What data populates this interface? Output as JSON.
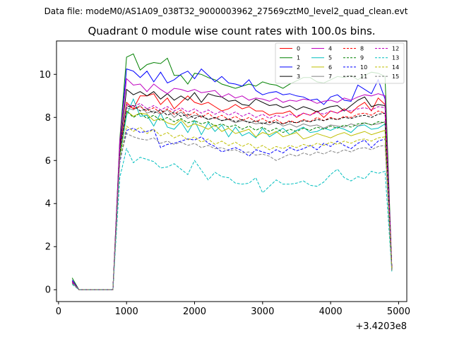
{
  "suptitle": "Data file: modeM0/AS1A09_038T32_9000003962_27569cztM0_level2_quad_clean.evt",
  "chart_data": {
    "type": "line",
    "title": "Quadrant 0 module wise count rates with 100.0s bins.",
    "xlabel": "",
    "ylabel": "",
    "x_offset_label": "+3.4203e8",
    "xlim": [
      -30,
      5120
    ],
    "ylim": [
      -0.55,
      11.55
    ],
    "xticks": [
      0,
      1000,
      2000,
      3000,
      4000,
      5000
    ],
    "yticks": [
      0,
      2,
      4,
      6,
      8,
      10
    ],
    "grid": false,
    "legend": {
      "placement": "top-right",
      "columns": 4
    },
    "x": [
      200,
      300,
      400,
      500,
      600,
      700,
      800,
      900,
      1000,
      1100,
      1200,
      1300,
      1400,
      1500,
      1600,
      1700,
      1800,
      1900,
      2000,
      2100,
      2200,
      2300,
      2400,
      2500,
      2600,
      2700,
      2800,
      2900,
      3000,
      3100,
      3200,
      3300,
      3400,
      3500,
      3600,
      3700,
      3800,
      3900,
      4000,
      4100,
      4200,
      4300,
      4400,
      4500,
      4600,
      4700,
      4800,
      4900
    ],
    "series": [
      {
        "name": "0",
        "color": "#ff0000",
        "dash": "solid",
        "values": [
          0.35,
          0,
          0,
          0,
          0,
          0,
          0,
          6.4,
          8.7,
          8.4,
          9.0,
          9.0,
          9.1,
          8.6,
          8.9,
          8.4,
          8.7,
          9.0,
          8.7,
          8.6,
          8.7,
          8.5,
          8.3,
          8.4,
          8.6,
          8.4,
          8.5,
          8.3,
          8.3,
          8.1,
          8.2,
          8.2,
          8.3,
          8.0,
          8.2,
          8.1,
          8.3,
          8.0,
          8.3,
          8.2,
          8.4,
          8.2,
          8.5,
          8.7,
          8.3,
          8.9,
          8.6,
          1.0
        ]
      },
      {
        "name": "1",
        "color": "#008000",
        "dash": "solid",
        "values": [
          0.55,
          0,
          0,
          0,
          0,
          0,
          0,
          7.0,
          10.8,
          10.95,
          10.2,
          10.45,
          10.55,
          10.5,
          10.75,
          9.95,
          9.95,
          9.55,
          10.05,
          10.0,
          9.85,
          9.75,
          9.55,
          9.45,
          9.35,
          9.45,
          9.55,
          9.45,
          9.65,
          9.55,
          9.5,
          9.35,
          9.55,
          9.7,
          9.85,
          9.85,
          9.65,
          9.6,
          9.75,
          9.9,
          9.85,
          9.95,
          9.75,
          9.95,
          10.1,
          10.05,
          9.9,
          1.0
        ]
      },
      {
        "name": "2",
        "color": "#0000ff",
        "dash": "solid",
        "values": [
          0.45,
          0,
          0,
          0,
          0,
          0,
          0,
          6.8,
          10.25,
          10.15,
          9.85,
          10.15,
          9.65,
          10.1,
          9.6,
          9.75,
          10.0,
          10.15,
          9.8,
          10.25,
          9.95,
          9.65,
          9.9,
          9.6,
          9.55,
          9.45,
          9.75,
          9.25,
          9.05,
          9.15,
          9.2,
          9.05,
          9.1,
          9.0,
          8.95,
          8.8,
          8.85,
          8.6,
          8.95,
          9.05,
          8.8,
          8.75,
          9.5,
          9.3,
          9.1,
          9.75,
          8.85,
          1.0
        ]
      },
      {
        "name": "3",
        "color": "#000000",
        "dash": "solid",
        "values": [
          0.4,
          0,
          0,
          0,
          0,
          0,
          0,
          6.6,
          9.3,
          9.05,
          9.2,
          9.0,
          9.2,
          8.85,
          9.1,
          8.8,
          9.0,
          8.8,
          9.15,
          8.7,
          9.1,
          9.0,
          8.95,
          8.75,
          8.8,
          8.6,
          8.55,
          8.85,
          8.7,
          8.55,
          8.6,
          8.45,
          8.55,
          8.35,
          8.5,
          8.4,
          8.25,
          8.4,
          8.5,
          8.55,
          8.3,
          8.55,
          8.8,
          8.95,
          8.5,
          8.6,
          8.55,
          1.0
        ]
      },
      {
        "name": "4",
        "color": "#bf00bf",
        "dash": "solid",
        "values": [
          0.4,
          0,
          0,
          0,
          0,
          0,
          0,
          6.9,
          9.8,
          9.5,
          9.55,
          9.2,
          9.55,
          9.3,
          9.1,
          9.35,
          9.3,
          9.2,
          9.3,
          9.15,
          9.2,
          9.25,
          8.95,
          9.1,
          8.9,
          9.0,
          8.8,
          8.9,
          8.85,
          8.75,
          8.9,
          8.7,
          8.8,
          8.75,
          8.85,
          8.8,
          8.65,
          8.75,
          8.8,
          8.7,
          8.9,
          8.8,
          8.95,
          9.05,
          9.0,
          9.1,
          9.0,
          1.0
        ]
      },
      {
        "name": "5",
        "color": "#00bfbf",
        "dash": "solid",
        "values": [
          0.35,
          0,
          0,
          0,
          0,
          0,
          0,
          6.1,
          8.1,
          8.85,
          8.05,
          8.1,
          7.6,
          8.2,
          7.55,
          7.45,
          7.8,
          7.3,
          7.85,
          7.2,
          7.75,
          7.35,
          7.65,
          7.1,
          7.55,
          7.15,
          7.3,
          7.05,
          7.5,
          7.1,
          7.3,
          7.5,
          7.2,
          7.4,
          7.55,
          7.3,
          7.35,
          7.5,
          7.4,
          7.55,
          7.45,
          7.3,
          7.6,
          7.65,
          7.45,
          7.5,
          7.7,
          0.9
        ]
      },
      {
        "name": "6",
        "color": "#bfbf00",
        "dash": "solid",
        "values": [
          0.35,
          0,
          0,
          0,
          0,
          0,
          0,
          6.2,
          8.3,
          8.05,
          8.2,
          8.15,
          7.85,
          7.95,
          7.75,
          7.65,
          7.9,
          7.55,
          7.7,
          7.6,
          7.45,
          7.65,
          7.35,
          7.5,
          7.25,
          7.35,
          7.45,
          7.1,
          7.3,
          7.2,
          7.35,
          7.1,
          7.2,
          7.3,
          7.0,
          7.1,
          7.25,
          7.15,
          7.05,
          7.2,
          7.3,
          7.15,
          7.25,
          7.35,
          7.2,
          7.3,
          7.4,
          0.95
        ]
      },
      {
        "name": "7",
        "color": "#808080",
        "dash": "solid",
        "values": [
          0.35,
          0,
          0,
          0,
          0,
          0,
          0,
          6.3,
          8.45,
          8.35,
          8.55,
          8.2,
          8.3,
          8.15,
          8.35,
          8.0,
          8.25,
          7.95,
          8.1,
          8.05,
          7.9,
          8.0,
          7.85,
          7.9,
          7.75,
          7.85,
          7.8,
          7.7,
          7.75,
          7.65,
          7.8,
          7.6,
          7.7,
          7.55,
          7.7,
          7.6,
          7.65,
          7.5,
          7.65,
          7.6,
          7.55,
          7.7,
          7.6,
          7.75,
          7.65,
          7.7,
          7.8,
          1.0
        ]
      },
      {
        "name": "8",
        "color": "#ff0000",
        "dash": "dashed",
        "values": [
          0.35,
          0,
          0,
          0,
          0,
          0,
          0,
          6.4,
          8.6,
          8.4,
          8.5,
          8.3,
          8.45,
          8.2,
          8.4,
          8.15,
          8.35,
          8.05,
          8.25,
          8.0,
          8.2,
          7.95,
          8.1,
          7.9,
          8.05,
          7.85,
          8.0,
          7.8,
          7.95,
          7.75,
          7.9,
          7.7,
          7.85,
          7.75,
          7.9,
          7.8,
          8.0,
          7.85,
          8.0,
          7.9,
          8.05,
          8.0,
          8.15,
          8.2,
          8.1,
          8.3,
          8.2,
          1.0
        ]
      },
      {
        "name": "9",
        "color": "#008000",
        "dash": "dashed",
        "values": [
          0.35,
          0,
          0,
          0,
          0,
          0,
          0,
          6.3,
          8.3,
          8.0,
          8.2,
          7.95,
          8.1,
          7.85,
          8.0,
          7.8,
          7.95,
          7.75,
          7.85,
          7.7,
          7.8,
          7.6,
          7.7,
          7.55,
          7.65,
          7.45,
          7.6,
          7.4,
          7.55,
          7.35,
          7.5,
          7.3,
          7.45,
          7.35,
          7.5,
          7.4,
          7.55,
          7.45,
          7.6,
          7.5,
          7.65,
          7.55,
          7.7,
          7.75,
          7.65,
          7.8,
          7.75,
          0.95
        ]
      },
      {
        "name": "10",
        "color": "#0000ff",
        "dash": "dashed",
        "values": [
          0.3,
          0,
          0,
          0,
          0,
          0,
          0,
          5.9,
          7.4,
          7.5,
          7.3,
          7.35,
          7.45,
          6.6,
          6.75,
          6.8,
          6.9,
          7.0,
          6.95,
          7.1,
          6.8,
          6.65,
          6.4,
          6.5,
          6.6,
          6.45,
          6.2,
          6.5,
          6.4,
          6.3,
          6.5,
          6.35,
          6.6,
          6.45,
          6.55,
          6.7,
          6.5,
          6.8,
          6.65,
          6.9,
          6.7,
          6.55,
          6.8,
          6.95,
          6.6,
          6.9,
          7.0,
          0.9
        ]
      },
      {
        "name": "11",
        "color": "#000000",
        "dash": "dashed",
        "values": [
          0.35,
          0,
          0,
          0,
          0,
          0,
          0,
          6.4,
          8.5,
          8.55,
          8.3,
          8.4,
          8.2,
          8.35,
          8.1,
          8.25,
          8.05,
          8.15,
          7.95,
          8.1,
          7.9,
          8.0,
          7.85,
          7.95,
          7.8,
          7.9,
          7.75,
          7.85,
          7.7,
          7.8,
          7.75,
          7.7,
          7.8,
          7.75,
          7.85,
          7.8,
          7.9,
          7.85,
          7.95,
          7.9,
          8.0,
          7.95,
          8.05,
          8.1,
          8.0,
          8.15,
          8.2,
          1.0
        ]
      },
      {
        "name": "12",
        "color": "#bf00bf",
        "dash": "dashed",
        "values": [
          0.35,
          0,
          0,
          0,
          0,
          0,
          0,
          6.5,
          8.6,
          8.5,
          8.65,
          8.4,
          8.55,
          8.35,
          8.5,
          8.3,
          8.45,
          8.25,
          8.4,
          8.2,
          8.35,
          8.15,
          8.3,
          8.1,
          8.25,
          8.05,
          8.2,
          8.0,
          8.15,
          7.95,
          8.1,
          8.0,
          8.15,
          8.05,
          8.2,
          8.1,
          8.25,
          8.15,
          8.3,
          8.2,
          8.35,
          8.3,
          8.4,
          8.45,
          8.35,
          8.5,
          8.45,
          1.0
        ]
      },
      {
        "name": "13",
        "color": "#00bfbf",
        "dash": "dashed",
        "values": [
          0.25,
          0,
          0,
          0,
          0,
          0,
          0,
          5.2,
          6.55,
          5.9,
          6.15,
          6.05,
          5.95,
          5.65,
          5.7,
          5.85,
          5.6,
          5.35,
          6.0,
          5.55,
          5.1,
          5.45,
          5.25,
          5.2,
          4.95,
          4.9,
          4.95,
          5.2,
          4.5,
          4.8,
          5.1,
          4.9,
          4.9,
          4.95,
          5.05,
          4.85,
          4.8,
          5.0,
          5.35,
          5.6,
          5.2,
          5.05,
          5.25,
          5.15,
          5.5,
          5.4,
          5.5,
          0.85
        ]
      },
      {
        "name": "14",
        "color": "#bfbf00",
        "dash": "dashed",
        "values": [
          0.3,
          0,
          0,
          0,
          0,
          0,
          0,
          6.0,
          7.6,
          7.35,
          7.55,
          7.25,
          7.45,
          7.15,
          7.3,
          7.05,
          7.2,
          6.95,
          7.1,
          6.85,
          7.0,
          6.75,
          6.9,
          6.7,
          6.85,
          6.65,
          6.8,
          6.55,
          6.7,
          6.5,
          6.65,
          6.55,
          6.7,
          6.6,
          6.75,
          6.65,
          6.8,
          6.7,
          6.85,
          6.75,
          6.9,
          6.8,
          6.95,
          7.0,
          6.9,
          7.05,
          7.1,
          0.9
        ]
      },
      {
        "name": "15",
        "color": "#808080",
        "dash": "dashed",
        "values": [
          0.3,
          0,
          0,
          0,
          0,
          0,
          0,
          6.0,
          7.25,
          7.1,
          7.0,
          6.95,
          7.05,
          6.8,
          6.9,
          6.75,
          6.85,
          6.7,
          6.8,
          6.6,
          6.7,
          6.55,
          6.6,
          6.45,
          6.5,
          6.35,
          6.4,
          6.25,
          6.3,
          6.2,
          6.0,
          6.15,
          6.3,
          6.2,
          6.35,
          6.25,
          6.4,
          6.3,
          6.45,
          6.35,
          6.5,
          6.4,
          6.55,
          6.6,
          6.5,
          6.65,
          6.7,
          0.9
        ]
      }
    ]
  }
}
